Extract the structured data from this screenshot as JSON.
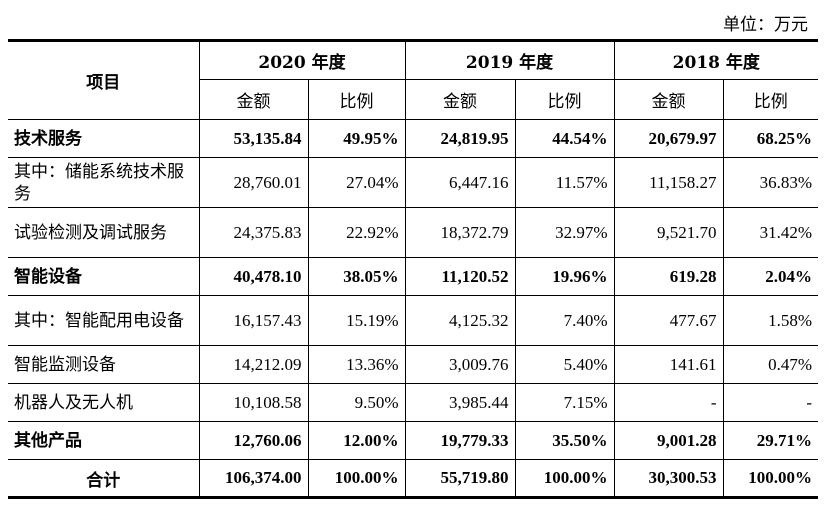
{
  "unit_label": "单位：万元",
  "header": {
    "item_col": "项目",
    "years": [
      "2020 年度",
      "2019 年度",
      "2018 年度"
    ],
    "amount": "金额",
    "ratio": "比例"
  },
  "rows": [
    {
      "label": "技术服务",
      "bold": true,
      "values": [
        "53,135.84",
        "49.95%",
        "24,819.95",
        "44.54%",
        "20,679.97",
        "68.25%"
      ]
    },
    {
      "label": "其中：储能系统技术服务",
      "bold": false,
      "values": [
        "28,760.01",
        "27.04%",
        "6,447.16",
        "11.57%",
        "11,158.27",
        "36.83%"
      ]
    },
    {
      "label": "试验检测及调试服务",
      "bold": false,
      "values": [
        "24,375.83",
        "22.92%",
        "18,372.79",
        "32.97%",
        "9,521.70",
        "31.42%"
      ]
    },
    {
      "label": "智能设备",
      "bold": true,
      "values": [
        "40,478.10",
        "38.05%",
        "11,120.52",
        "19.96%",
        "619.28",
        "2.04%"
      ]
    },
    {
      "label": "其中：智能配用电设备",
      "bold": false,
      "values": [
        "16,157.43",
        "15.19%",
        "4,125.32",
        "7.40%",
        "477.67",
        "1.58%"
      ]
    },
    {
      "label": "智能监测设备",
      "bold": false,
      "values": [
        "14,212.09",
        "13.36%",
        "3,009.76",
        "5.40%",
        "141.61",
        "0.47%"
      ]
    },
    {
      "label": "机器人及无人机",
      "bold": false,
      "values": [
        "10,108.58",
        "9.50%",
        "3,985.44",
        "7.15%",
        "-",
        "-"
      ]
    },
    {
      "label": "其他产品",
      "bold": true,
      "values": [
        "12,760.06",
        "12.00%",
        "19,779.33",
        "35.50%",
        "9,001.28",
        "29.71%"
      ]
    }
  ],
  "total": {
    "label": "合计",
    "values": [
      "106,374.00",
      "100.00%",
      "55,719.80",
      "100.00%",
      "30,300.53",
      "100.00%"
    ]
  }
}
